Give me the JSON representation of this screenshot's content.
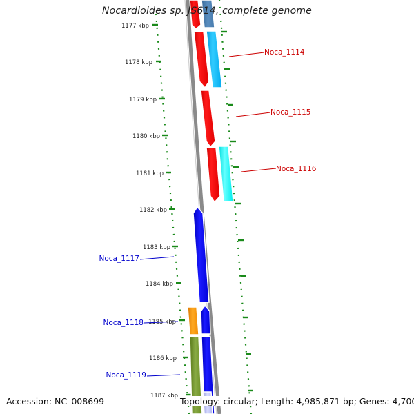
{
  "title": "Nocardioides sp. JS614, complete genome",
  "footer": {
    "accession": "Accession: NC_008699",
    "summary": "Topology: circular; Length: 4,985,871 bp; Genes: 4,700"
  },
  "colors": {
    "forward_label": "#cc0000",
    "reverse_label": "#0000cc",
    "ticks": "#1a8a1a",
    "backbone": "#808080"
  },
  "scale_ticks": [
    {
      "label": "1177 kbp",
      "kbp": 1177
    },
    {
      "label": "1178 kbp",
      "kbp": 1178
    },
    {
      "label": "1179 kbp",
      "kbp": 1179
    },
    {
      "label": "1180 kbp",
      "kbp": 1180
    },
    {
      "label": "1181 kbp",
      "kbp": 1181
    },
    {
      "label": "1182 kbp",
      "kbp": 1182
    },
    {
      "label": "1183 kbp",
      "kbp": 1183
    },
    {
      "label": "1184 kbp",
      "kbp": 1184
    },
    {
      "label": "1185 kbp",
      "kbp": 1185
    },
    {
      "label": "1186 kbp",
      "kbp": 1186
    },
    {
      "label": "1187 kbp",
      "kbp": 1187
    }
  ],
  "gene_labels": [
    {
      "text": "Noca_1114",
      "strand": "forward"
    },
    {
      "text": "Noca_1115",
      "strand": "forward"
    },
    {
      "text": "Noca_1116",
      "strand": "forward"
    },
    {
      "text": "Noca_1117",
      "strand": "reverse"
    },
    {
      "text": "Noca_1118",
      "strand": "reverse"
    },
    {
      "text": "Noca_1119",
      "strand": "reverse"
    }
  ]
}
